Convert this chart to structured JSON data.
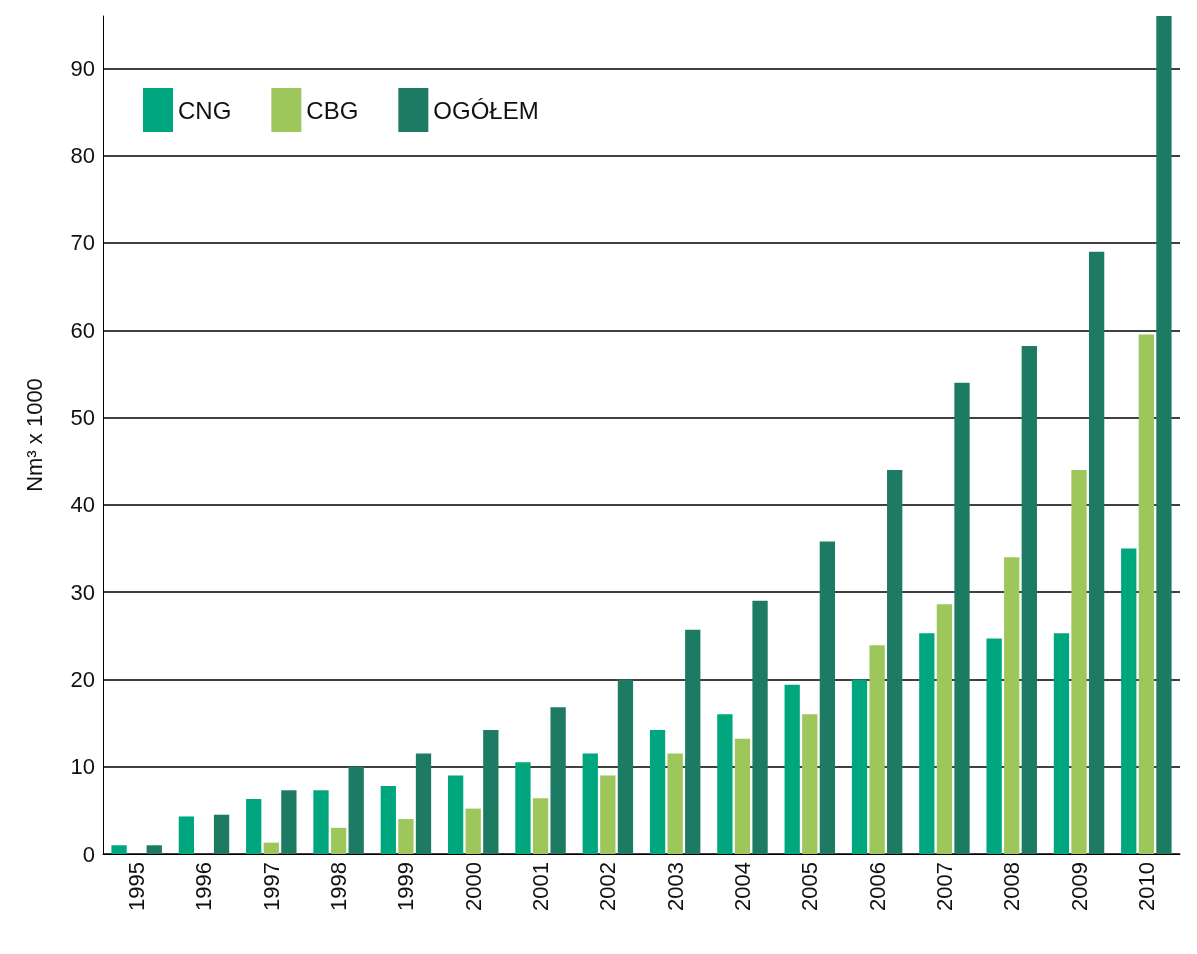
{
  "chart_data": {
    "type": "bar",
    "ylabel": "Nm³ x 1000",
    "categories": [
      "1995",
      "1996",
      "1997",
      "1998",
      "1999",
      "2000",
      "2001",
      "2002",
      "2003",
      "2004",
      "2005",
      "2006",
      "2007",
      "2008",
      "2009",
      "2010"
    ],
    "series": [
      {
        "name": "CNG",
        "color": "#00a77e",
        "values": [
          1,
          4.3,
          6.3,
          7.3,
          7.8,
          9,
          10.5,
          11.5,
          14.2,
          16,
          19.4,
          20,
          25.3,
          24.7,
          25.3,
          35
        ]
      },
      {
        "name": "CBG",
        "color": "#9dc75b",
        "values": [
          0,
          0,
          1.3,
          3,
          4,
          5.2,
          6.4,
          9,
          11.5,
          13.2,
          16,
          23.9,
          28.6,
          34,
          44,
          59.5
        ]
      },
      {
        "name": "OGÓŁEM",
        "color": "#1e7b63",
        "values": [
          1,
          4.5,
          7.3,
          10,
          11.5,
          14.2,
          16.8,
          20,
          25.7,
          29,
          35.8,
          44,
          54,
          58.2,
          69,
          96
        ]
      }
    ],
    "ylim": [
      0,
      96
    ],
    "yticks": [
      0,
      10,
      20,
      30,
      40,
      50,
      60,
      70,
      80,
      90
    ],
    "grid": "y",
    "legend": "top left"
  }
}
